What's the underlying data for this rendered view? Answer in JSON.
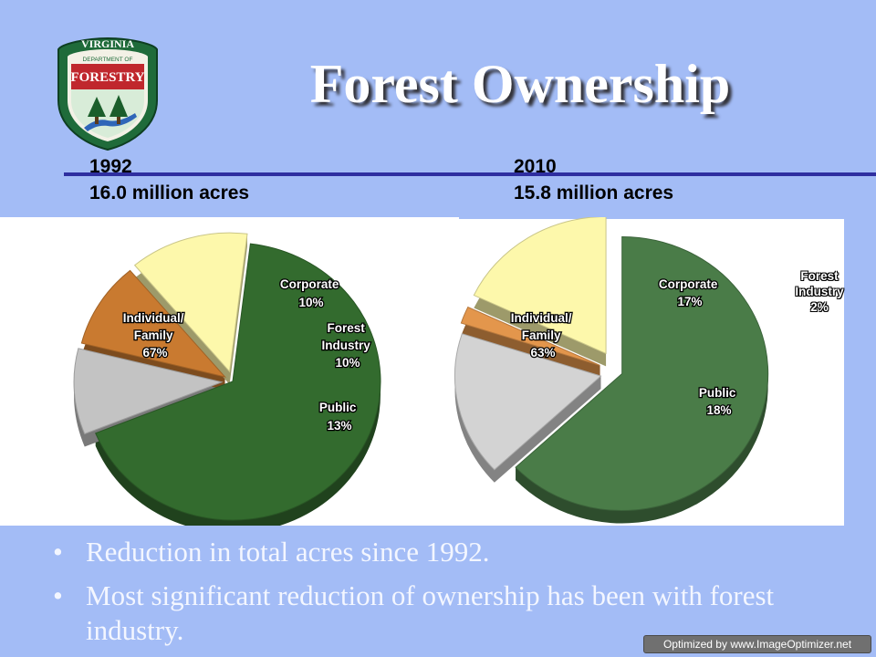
{
  "logo": {
    "line1": "VIRGINIA",
    "line2": "DEPARTMENT OF",
    "line3": "FORESTRY"
  },
  "title": "Forest Ownership",
  "left_header": {
    "year": "1992",
    "acres": "16.0 million acres"
  },
  "right_header": {
    "year": "2010",
    "acres": "15.8 million acres"
  },
  "chart_data": [
    {
      "type": "pie",
      "title": "1992",
      "slices": [
        {
          "name": "Individual/ Family",
          "value": 67,
          "color": "#336b2e"
        },
        {
          "name": "Corporate",
          "value": 10,
          "color": "#c3c3c3"
        },
        {
          "name": "Forest Industry",
          "value": 10,
          "color": "#c97a30"
        },
        {
          "name": "Public",
          "value": 13,
          "color": "#fdf8ab"
        }
      ]
    },
    {
      "type": "pie",
      "title": "2010",
      "slices": [
        {
          "name": "Individual/ Family",
          "value": 63,
          "color": "#4a7c48"
        },
        {
          "name": "Corporate",
          "value": 17,
          "color": "#d3d3d3"
        },
        {
          "name": "Forest Industry",
          "value": 2,
          "color": "#e3964c"
        },
        {
          "name": "Public",
          "value": 18,
          "color": "#fdf8ab"
        }
      ]
    }
  ],
  "labels_left": {
    "individual": [
      "Individual/",
      "Family",
      "67%"
    ],
    "corporate": [
      "Corporate",
      "10%"
    ],
    "industry": [
      "Forest",
      "Industry",
      "10%"
    ],
    "public": [
      "Public",
      "13%"
    ]
  },
  "labels_right": {
    "individual": [
      "Individual/",
      "Family",
      "63%"
    ],
    "corporate": [
      "Corporate",
      "17%"
    ],
    "industry": [
      "Forest",
      "Industry",
      "2%"
    ],
    "public": [
      "Public",
      "18%"
    ]
  },
  "bullets": [
    "Reduction in total acres since 1992.",
    "Most significant reduction of ownership has been with forest industry."
  ],
  "bullet_glyph": "•",
  "watermark": "Optimized by www.ImageOptimizer.net"
}
